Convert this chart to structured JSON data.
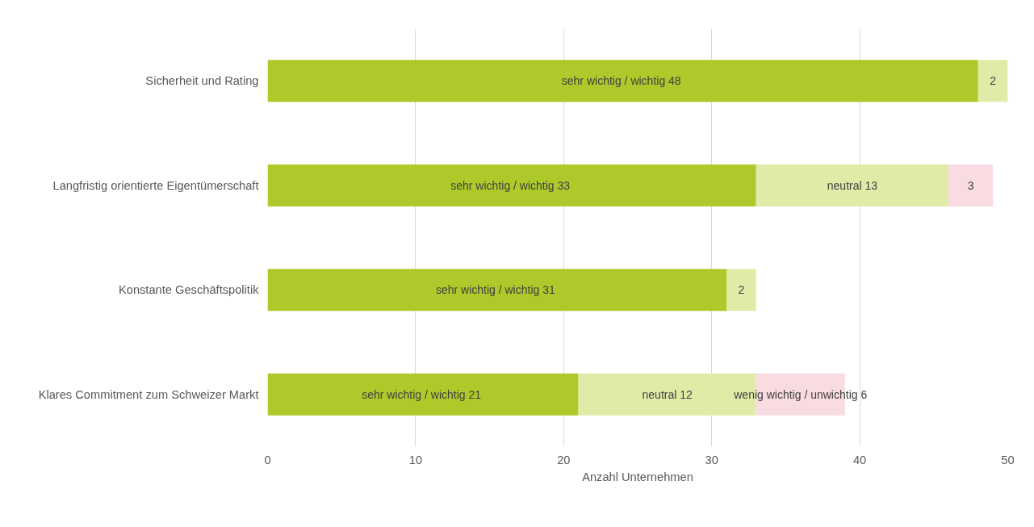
{
  "chart_data": {
    "type": "bar",
    "orientation": "horizontal",
    "stacked": true,
    "xlabel": "Anzahl Unternehmen",
    "categories": [
      "Sicherheit und Rating",
      "Langfristig orientierte Eigentümerschaft",
      "Konstante Geschäftspolitik",
      "Klares Commitment zum Schweizer Markt"
    ],
    "series": [
      {
        "color": "#adca2a",
        "values": [
          48,
          33,
          31,
          21
        ],
        "value_labels": [
          "sehr wichtig / wichtig  48",
          "sehr wichtig / wichtig  33",
          "sehr wichtig / wichtig  31",
          "sehr wichtig / wichtig  21"
        ]
      },
      {
        "color": "#e0eba8",
        "values": [
          2,
          13,
          2,
          12
        ],
        "value_labels": [
          "2",
          "neutral 13",
          "2",
          "neutral 12"
        ]
      },
      {
        "color": "#f9dce1",
        "values": [
          null,
          3,
          null,
          6
        ],
        "value_labels": [
          null,
          "3",
          null,
          "wenig wichtig / unwichtig 6"
        ]
      }
    ],
    "xlim": [
      0,
      50
    ],
    "xticks": [
      0,
      10,
      20,
      30,
      40,
      50
    ],
    "grid": "x"
  }
}
